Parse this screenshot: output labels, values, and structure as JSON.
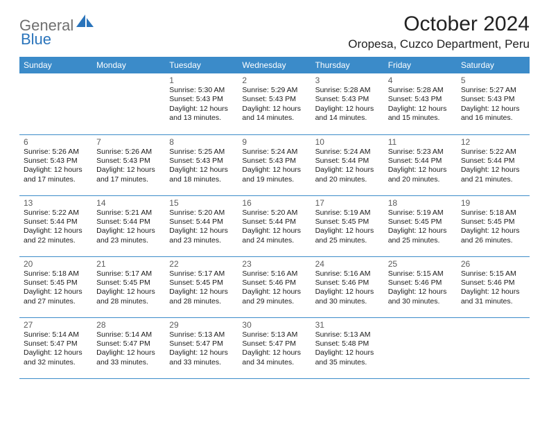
{
  "brand": {
    "part1": "General",
    "part2": "Blue"
  },
  "title": "October 2024",
  "location": "Oropesa, Cuzco Department, Peru",
  "colors": {
    "header_bg": "#3b8bc9",
    "header_text": "#ffffff",
    "brand_gray": "#6f6f6f",
    "brand_blue": "#2a74bb",
    "day_num": "#5b5b5b",
    "body_text": "#1a1a1a",
    "rule": "#3b8bc9",
    "page_bg": "#ffffff"
  },
  "typography": {
    "title_fontsize": 30,
    "location_fontsize": 17,
    "dow_fontsize": 12,
    "daynum_fontsize": 12,
    "info_fontsize": 10.5
  },
  "dow": [
    "Sunday",
    "Monday",
    "Tuesday",
    "Wednesday",
    "Thursday",
    "Friday",
    "Saturday"
  ],
  "weeks": [
    [
      null,
      null,
      {
        "n": "1",
        "sr": "5:30 AM",
        "ss": "5:43 PM",
        "dl": "12 hours and 13 minutes."
      },
      {
        "n": "2",
        "sr": "5:29 AM",
        "ss": "5:43 PM",
        "dl": "12 hours and 14 minutes."
      },
      {
        "n": "3",
        "sr": "5:28 AM",
        "ss": "5:43 PM",
        "dl": "12 hours and 14 minutes."
      },
      {
        "n": "4",
        "sr": "5:28 AM",
        "ss": "5:43 PM",
        "dl": "12 hours and 15 minutes."
      },
      {
        "n": "5",
        "sr": "5:27 AM",
        "ss": "5:43 PM",
        "dl": "12 hours and 16 minutes."
      }
    ],
    [
      {
        "n": "6",
        "sr": "5:26 AM",
        "ss": "5:43 PM",
        "dl": "12 hours and 17 minutes."
      },
      {
        "n": "7",
        "sr": "5:26 AM",
        "ss": "5:43 PM",
        "dl": "12 hours and 17 minutes."
      },
      {
        "n": "8",
        "sr": "5:25 AM",
        "ss": "5:43 PM",
        "dl": "12 hours and 18 minutes."
      },
      {
        "n": "9",
        "sr": "5:24 AM",
        "ss": "5:43 PM",
        "dl": "12 hours and 19 minutes."
      },
      {
        "n": "10",
        "sr": "5:24 AM",
        "ss": "5:44 PM",
        "dl": "12 hours and 20 minutes."
      },
      {
        "n": "11",
        "sr": "5:23 AM",
        "ss": "5:44 PM",
        "dl": "12 hours and 20 minutes."
      },
      {
        "n": "12",
        "sr": "5:22 AM",
        "ss": "5:44 PM",
        "dl": "12 hours and 21 minutes."
      }
    ],
    [
      {
        "n": "13",
        "sr": "5:22 AM",
        "ss": "5:44 PM",
        "dl": "12 hours and 22 minutes."
      },
      {
        "n": "14",
        "sr": "5:21 AM",
        "ss": "5:44 PM",
        "dl": "12 hours and 23 minutes."
      },
      {
        "n": "15",
        "sr": "5:20 AM",
        "ss": "5:44 PM",
        "dl": "12 hours and 23 minutes."
      },
      {
        "n": "16",
        "sr": "5:20 AM",
        "ss": "5:44 PM",
        "dl": "12 hours and 24 minutes."
      },
      {
        "n": "17",
        "sr": "5:19 AM",
        "ss": "5:45 PM",
        "dl": "12 hours and 25 minutes."
      },
      {
        "n": "18",
        "sr": "5:19 AM",
        "ss": "5:45 PM",
        "dl": "12 hours and 25 minutes."
      },
      {
        "n": "19",
        "sr": "5:18 AM",
        "ss": "5:45 PM",
        "dl": "12 hours and 26 minutes."
      }
    ],
    [
      {
        "n": "20",
        "sr": "5:18 AM",
        "ss": "5:45 PM",
        "dl": "12 hours and 27 minutes."
      },
      {
        "n": "21",
        "sr": "5:17 AM",
        "ss": "5:45 PM",
        "dl": "12 hours and 28 minutes."
      },
      {
        "n": "22",
        "sr": "5:17 AM",
        "ss": "5:45 PM",
        "dl": "12 hours and 28 minutes."
      },
      {
        "n": "23",
        "sr": "5:16 AM",
        "ss": "5:46 PM",
        "dl": "12 hours and 29 minutes."
      },
      {
        "n": "24",
        "sr": "5:16 AM",
        "ss": "5:46 PM",
        "dl": "12 hours and 30 minutes."
      },
      {
        "n": "25",
        "sr": "5:15 AM",
        "ss": "5:46 PM",
        "dl": "12 hours and 30 minutes."
      },
      {
        "n": "26",
        "sr": "5:15 AM",
        "ss": "5:46 PM",
        "dl": "12 hours and 31 minutes."
      }
    ],
    [
      {
        "n": "27",
        "sr": "5:14 AM",
        "ss": "5:47 PM",
        "dl": "12 hours and 32 minutes."
      },
      {
        "n": "28",
        "sr": "5:14 AM",
        "ss": "5:47 PM",
        "dl": "12 hours and 33 minutes."
      },
      {
        "n": "29",
        "sr": "5:13 AM",
        "ss": "5:47 PM",
        "dl": "12 hours and 33 minutes."
      },
      {
        "n": "30",
        "sr": "5:13 AM",
        "ss": "5:47 PM",
        "dl": "12 hours and 34 minutes."
      },
      {
        "n": "31",
        "sr": "5:13 AM",
        "ss": "5:48 PM",
        "dl": "12 hours and 35 minutes."
      },
      null,
      null
    ]
  ],
  "labels": {
    "sunrise": "Sunrise:",
    "sunset": "Sunset:",
    "daylight": "Daylight:"
  }
}
